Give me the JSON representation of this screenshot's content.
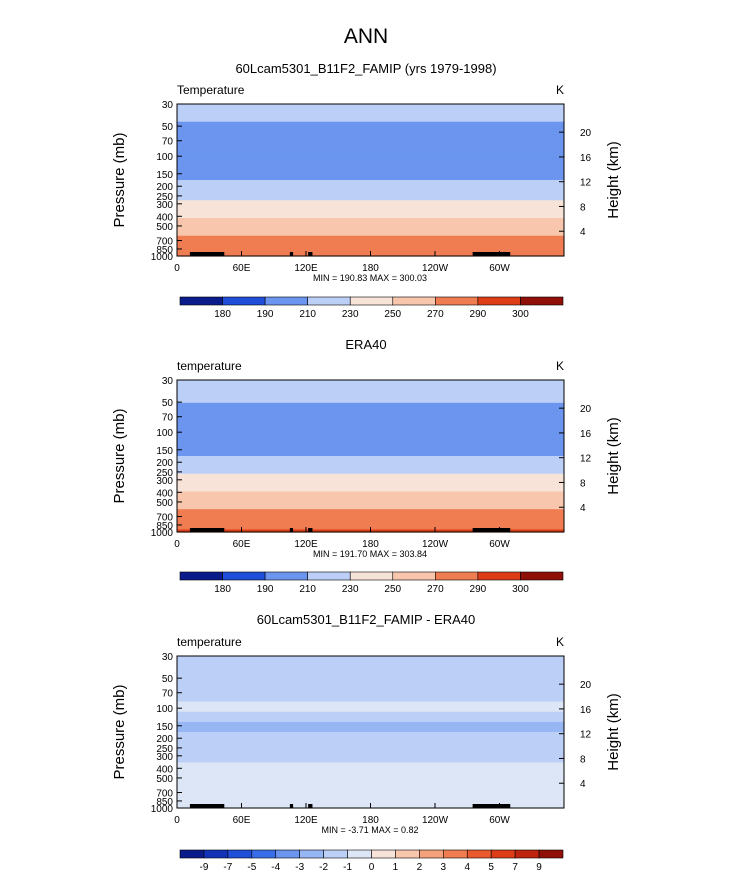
{
  "page": {
    "title": "ANN"
  },
  "chart_data": [
    {
      "type": "heatmap",
      "title": "60Lcam5301_B11F2_FAMIP (yrs 1979-1998)",
      "variable_label": "Temperature",
      "units": "K",
      "ylabel": "Pressure (mb)",
      "ylabel_right": "Height (km)",
      "x_ticks": [
        "0",
        "60E",
        "120E",
        "180",
        "120W",
        "60W"
      ],
      "x_tick_values": [
        0,
        60,
        120,
        180,
        240,
        300
      ],
      "xlim": [
        0,
        360
      ],
      "y_ticks": [
        "30",
        "50",
        "70",
        "100",
        "150",
        "200",
        "250",
        "300",
        "400",
        "500",
        "700",
        "850",
        "1000"
      ],
      "y_tick_values": [
        30,
        50,
        70,
        100,
        150,
        200,
        250,
        300,
        400,
        500,
        700,
        850,
        1000
      ],
      "ylim": [
        30,
        1000
      ],
      "y_scale": "log",
      "height_ticks": [
        "4",
        "8",
        "12",
        "16",
        "20"
      ],
      "height_tick_values": [
        4,
        8,
        12,
        16,
        20
      ],
      "min_label": "MIN = 190.83   MAX = 300.03",
      "min": 190.83,
      "max": 300.03,
      "colorbar_labels": [
        "180",
        "190",
        "210",
        "230",
        "250",
        "270",
        "290",
        "300"
      ],
      "colorbar_colors": [
        "#0a1c8c",
        "#1232b8",
        "#1f4ed8",
        "#3a6ee8",
        "#6b95ef",
        "#97b6f4",
        "#bcd0f7",
        "#dce6f6",
        "#f7e3d8",
        "#f8c6ad",
        "#f5a17c",
        "#f07d52",
        "#ea5a2e",
        "#dd3d17",
        "#bf2410",
        "#8f1009"
      ],
      "profile": [
        {
          "p": 30,
          "value": 214
        },
        {
          "p": 50,
          "value": 209
        },
        {
          "p": 70,
          "value": 202
        },
        {
          "p": 100,
          "value": 197
        },
        {
          "p": 150,
          "value": 205
        },
        {
          "p": 200,
          "value": 214
        },
        {
          "p": 250,
          "value": 225
        },
        {
          "p": 300,
          "value": 235
        },
        {
          "p": 400,
          "value": 249
        },
        {
          "p": 500,
          "value": 259
        },
        {
          "p": 700,
          "value": 275
        },
        {
          "p": 850,
          "value": 283
        },
        {
          "p": 1000,
          "value": 291
        }
      ]
    },
    {
      "type": "heatmap",
      "title": "ERA40",
      "variable_label": "temperature",
      "units": "K",
      "ylabel": "Pressure (mb)",
      "ylabel_right": "Height (km)",
      "x_ticks": [
        "0",
        "60E",
        "120E",
        "180",
        "120W",
        "60W"
      ],
      "x_tick_values": [
        0,
        60,
        120,
        180,
        240,
        300
      ],
      "xlim": [
        0,
        360
      ],
      "y_ticks": [
        "30",
        "50",
        "70",
        "100",
        "150",
        "200",
        "250",
        "300",
        "400",
        "500",
        "700",
        "850",
        "1000"
      ],
      "y_tick_values": [
        30,
        50,
        70,
        100,
        150,
        200,
        250,
        300,
        400,
        500,
        700,
        850,
        1000
      ],
      "ylim": [
        30,
        1000
      ],
      "y_scale": "log",
      "height_ticks": [
        "4",
        "8",
        "12",
        "16",
        "20"
      ],
      "height_tick_values": [
        4,
        8,
        12,
        16,
        20
      ],
      "min_label": "MIN = 191.70   MAX = 303.84",
      "min": 191.7,
      "max": 303.84,
      "colorbar_labels": [
        "180",
        "190",
        "210",
        "230",
        "250",
        "270",
        "290",
        "300"
      ],
      "colorbar_colors": [
        "#0a1c8c",
        "#1232b8",
        "#1f4ed8",
        "#3a6ee8",
        "#6b95ef",
        "#97b6f4",
        "#bcd0f7",
        "#dce6f6",
        "#f7e3d8",
        "#f8c6ad",
        "#f5a17c",
        "#f07d52",
        "#ea5a2e",
        "#dd3d17",
        "#bf2410",
        "#8f1009"
      ],
      "profile": [
        {
          "p": 30,
          "value": 215
        },
        {
          "p": 50,
          "value": 210
        },
        {
          "p": 70,
          "value": 203
        },
        {
          "p": 100,
          "value": 198
        },
        {
          "p": 150,
          "value": 206
        },
        {
          "p": 200,
          "value": 216
        },
        {
          "p": 250,
          "value": 227
        },
        {
          "p": 300,
          "value": 237
        },
        {
          "p": 400,
          "value": 251
        },
        {
          "p": 500,
          "value": 261
        },
        {
          "p": 700,
          "value": 277
        },
        {
          "p": 850,
          "value": 286
        },
        {
          "p": 1000,
          "value": 294
        }
      ]
    },
    {
      "type": "heatmap",
      "title": "60Lcam5301_B11F2_FAMIP - ERA40",
      "variable_label": "temperature",
      "units": "K",
      "ylabel": "Pressure (mb)",
      "ylabel_right": "Height (km)",
      "x_ticks": [
        "0",
        "60E",
        "120E",
        "180",
        "120W",
        "60W"
      ],
      "x_tick_values": [
        0,
        60,
        120,
        180,
        240,
        300
      ],
      "xlim": [
        0,
        360
      ],
      "y_ticks": [
        "30",
        "50",
        "70",
        "100",
        "150",
        "200",
        "250",
        "300",
        "400",
        "500",
        "700",
        "850",
        "1000"
      ],
      "y_tick_values": [
        30,
        50,
        70,
        100,
        150,
        200,
        250,
        300,
        400,
        500,
        700,
        850,
        1000
      ],
      "ylim": [
        30,
        1000
      ],
      "y_scale": "log",
      "height_ticks": [
        "4",
        "8",
        "12",
        "16",
        "20"
      ],
      "height_tick_values": [
        4,
        8,
        12,
        16,
        20
      ],
      "min_label": "MIN = -3.71   MAX = 0.82",
      "min": -3.71,
      "max": 0.82,
      "colorbar_labels": [
        "-9",
        "-7",
        "-5",
        "-4",
        "-3",
        "-2",
        "-1",
        "0",
        "1",
        "2",
        "3",
        "4",
        "5",
        "7",
        "9"
      ],
      "colorbar_colors": [
        "#0a1c8c",
        "#1232b8",
        "#1f4ed8",
        "#3a6ee8",
        "#6b95ef",
        "#97b6f4",
        "#bcd0f7",
        "#dce6f6",
        "#f7e3d8",
        "#f8c6ad",
        "#f5a17c",
        "#f07d52",
        "#ea5a2e",
        "#dd3d17",
        "#bf2410",
        "#8f1009"
      ],
      "profile": [
        {
          "p": 30,
          "value": -1.5
        },
        {
          "p": 50,
          "value": -1.5
        },
        {
          "p": 70,
          "value": -1.5
        },
        {
          "p": 100,
          "value": -0.5
        },
        {
          "p": 150,
          "value": -2.5
        },
        {
          "p": 200,
          "value": -1.5
        },
        {
          "p": 250,
          "value": -1.5
        },
        {
          "p": 300,
          "value": -1.5
        },
        {
          "p": 400,
          "value": -0.5
        },
        {
          "p": 500,
          "value": -0.5
        },
        {
          "p": 700,
          "value": -0.5
        },
        {
          "p": 850,
          "value": -0.5
        },
        {
          "p": 1000,
          "value": -0.5
        }
      ]
    }
  ]
}
